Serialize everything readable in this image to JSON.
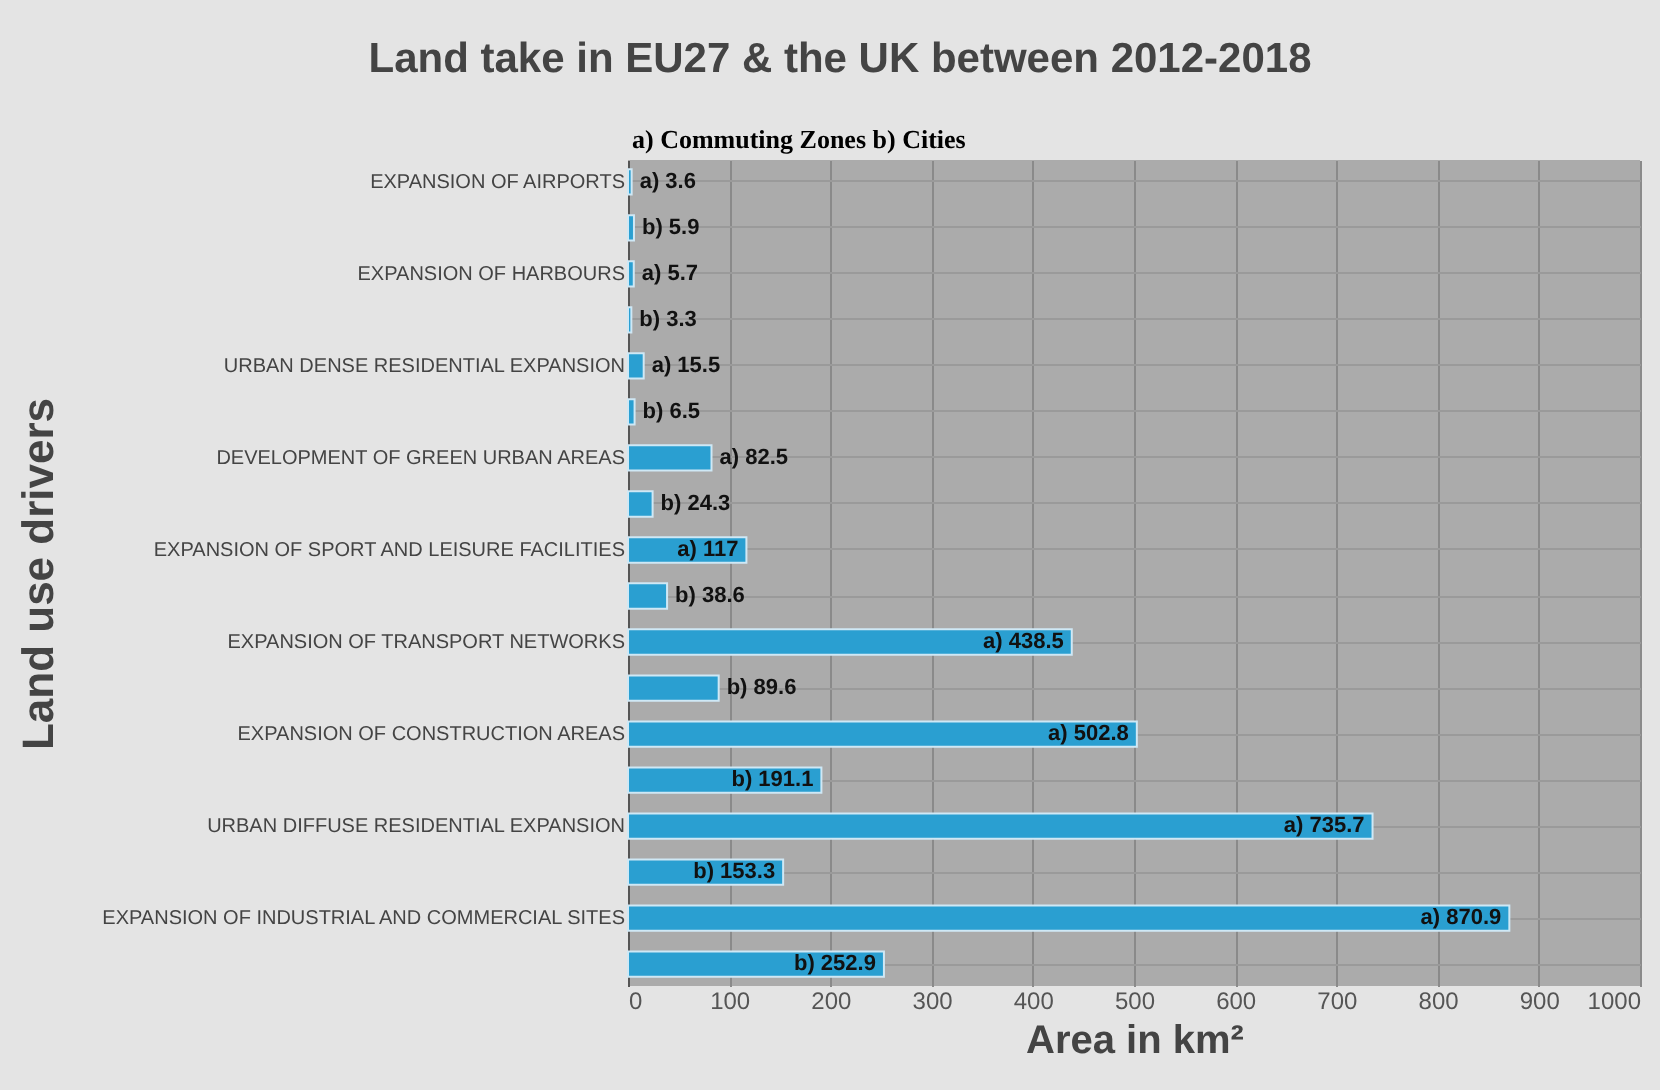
{
  "chart_data": {
    "type": "bar",
    "orientation": "horizontal",
    "title": "Land take in EU27 & the UK between 2012-2018",
    "subtitle": "a) Commuting Zones b) Cities",
    "xlabel": "Area in km²",
    "ylabel": "Land use drivers",
    "categories": [
      "EXPANSION OF AIRPORTS",
      null,
      "EXPANSION OF HARBOURS",
      null,
      "URBAN DENSE RESIDENTIAL EXPANSION",
      null,
      "DEVELOPMENT OF GREEN URBAN AREAS",
      null,
      "EXPANSION OF SPORT AND LEISURE FACILITIES",
      null,
      "EXPANSION OF TRANSPORT NETWORKS",
      null,
      "EXPANSION OF CONSTRUCTION AREAS",
      null,
      "URBAN DIFFUSE RESIDENTIAL EXPANSION",
      null,
      "EXPANSION OF INDUSTRIAL AND COMMERCIAL SITES",
      null
    ],
    "values": [
      3.6,
      5.9,
      5.7,
      3.3,
      15.5,
      6.5,
      82.5,
      24.3,
      117,
      38.6,
      438.5,
      89.6,
      502.8,
      191.1,
      735.7,
      153.3,
      870.9,
      252.9
    ],
    "value_labels": [
      "a) 3.6",
      "b) 5.9",
      "a) 5.7",
      "b) 3.3",
      "a) 15.5",
      "b) 6.5",
      "a) 82.5",
      "b) 24.3",
      "a) 117",
      "b) 38.6",
      "a) 438.5",
      "b) 89.6",
      "a) 502.8",
      "b) 191.1",
      "a) 735.7",
      "b) 153.3",
      "a) 870.9",
      "b) 252.9"
    ],
    "color": "#2a9fd1",
    "xlim": [
      0,
      1000
    ],
    "xticks": [
      0,
      100,
      200,
      300,
      400,
      500,
      600,
      700,
      800,
      900,
      {
        "value": 1000,
        "label": "1000"
      }
    ],
    "grid": true
  }
}
